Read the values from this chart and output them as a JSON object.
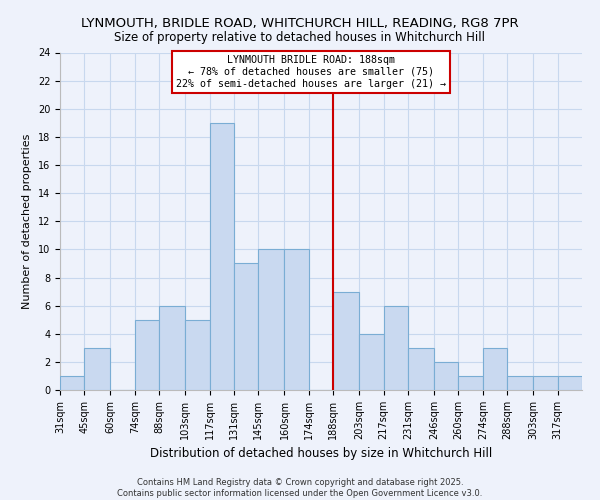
{
  "title": "LYNMOUTH, BRIDLE ROAD, WHITCHURCH HILL, READING, RG8 7PR",
  "subtitle": "Size of property relative to detached houses in Whitchurch Hill",
  "xlabel": "Distribution of detached houses by size in Whitchurch Hill",
  "ylabel": "Number of detached properties",
  "bin_labels": [
    "31sqm",
    "45sqm",
    "60sqm",
    "74sqm",
    "88sqm",
    "103sqm",
    "117sqm",
    "131sqm",
    "145sqm",
    "160sqm",
    "174sqm",
    "188sqm",
    "203sqm",
    "217sqm",
    "231sqm",
    "246sqm",
    "260sqm",
    "274sqm",
    "288sqm",
    "303sqm",
    "317sqm"
  ],
  "bin_edges": [
    31,
    45,
    60,
    74,
    88,
    103,
    117,
    131,
    145,
    160,
    174,
    188,
    203,
    217,
    231,
    246,
    260,
    274,
    288,
    303,
    317,
    331
  ],
  "counts": [
    1,
    3,
    0,
    5,
    6,
    5,
    19,
    9,
    10,
    10,
    0,
    7,
    4,
    6,
    3,
    2,
    1,
    3,
    1,
    1,
    1
  ],
  "bar_color": "#c9d9f0",
  "bar_edge_color": "#7aadd4",
  "grid_color": "#c8d8ee",
  "vline_x": 188,
  "vline_color": "#cc0000",
  "annotation_title": "LYNMOUTH BRIDLE ROAD: 188sqm",
  "annotation_line1": "← 78% of detached houses are smaller (75)",
  "annotation_line2": "22% of semi-detached houses are larger (21) →",
  "annotation_box_color": "white",
  "annotation_box_edge_color": "#cc0000",
  "ylim": [
    0,
    24
  ],
  "yticks": [
    0,
    2,
    4,
    6,
    8,
    10,
    12,
    14,
    16,
    18,
    20,
    22,
    24
  ],
  "footer1": "Contains HM Land Registry data © Crown copyright and database right 2025.",
  "footer2": "Contains public sector information licensed under the Open Government Licence v3.0.",
  "bg_color": "#eef2fb",
  "title_fontsize": 9.5,
  "subtitle_fontsize": 8.5,
  "tick_fontsize": 7,
  "ylabel_fontsize": 8,
  "xlabel_fontsize": 8.5,
  "footer_fontsize": 6
}
